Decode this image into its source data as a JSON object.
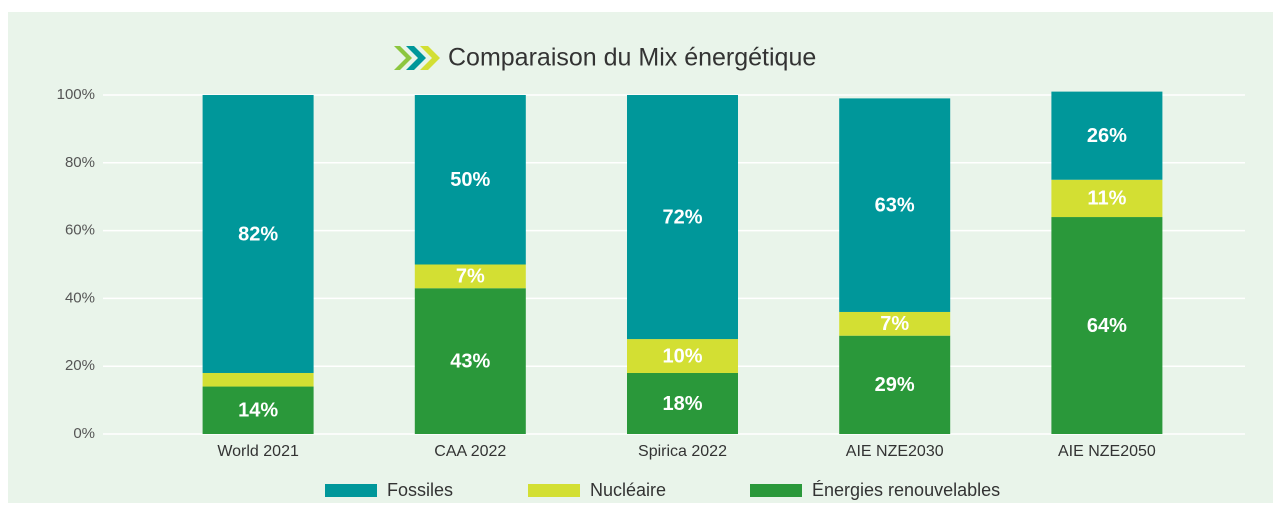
{
  "chart_data": {
    "type": "stacked_bar",
    "title": "Comparaison du Mix énergétique",
    "categories": [
      "World 2021",
      "CAA 2022",
      "Spirica 2022",
      "AIE NZE2030",
      "AIE NZE2050"
    ],
    "series": [
      {
        "name": "Énergies renouvelables",
        "color": "#2a983a",
        "values": [
          14,
          43,
          18,
          29,
          64
        ],
        "value_labels": [
          "14%",
          "43%",
          "18%",
          "29%",
          "64%"
        ]
      },
      {
        "name": "Nucléaire",
        "color": "#d3df33",
        "values": [
          4,
          7,
          10,
          7,
          11
        ],
        "value_labels": [
          "4%",
          "7%",
          "10%",
          "7%",
          "11%"
        ]
      },
      {
        "name": "Fossiles",
        "color": "#00979a",
        "values": [
          82,
          50,
          72,
          63,
          26
        ],
        "value_labels": [
          "82%",
          "50%",
          "72%",
          "63%",
          "26%"
        ]
      }
    ],
    "legend_order": [
      2,
      1,
      0
    ],
    "ylim": [
      0,
      100
    ],
    "yticks": [
      {
        "value": 0,
        "label": "0%"
      },
      {
        "value": 20,
        "label": "20%"
      },
      {
        "value": 40,
        "label": "40%"
      },
      {
        "value": 60,
        "label": "60%"
      },
      {
        "value": 80,
        "label": "80%"
      },
      {
        "value": 100,
        "label": "100%"
      }
    ],
    "grid": true
  }
}
